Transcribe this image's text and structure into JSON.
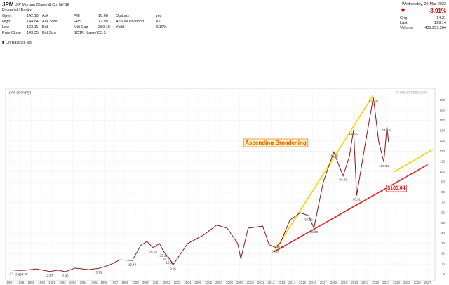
{
  "header": {
    "ticker": "JPM",
    "name": "J P Morgan Chase & Co",
    "exchange": "NYSE",
    "sector": "Financial / Banks",
    "stats": [
      [
        [
          "Open",
          "142.10"
        ],
        [
          "Ask"
        ],
        [
          "P/E",
          "10.68"
        ],
        [
          "Options",
          "yes"
        ]
      ],
      [
        [
          "High",
          "144.84"
        ],
        [
          "Ask Size"
        ],
        [
          "EPS",
          "12.09"
        ],
        [
          "Annual Dividend",
          "4.0"
        ]
      ],
      [
        [
          "Low",
          "123.11"
        ],
        [
          "Bid"
        ],
        [
          "Mkt Cap",
          "380.18"
        ],
        [
          "Yield",
          "3.10%"
        ]
      ],
      [
        [
          "Prev Close",
          "143.35"
        ],
        [
          "Bid Size"
        ],
        [
          "SCTR (Large)",
          "55.3"
        ]
      ]
    ],
    "indicator": "On Balance Vol"
  },
  "quote": {
    "date": "Wednesday, 29-Mar-2023",
    "change_pct": "-8.91%",
    "chg_label": "Chg",
    "chg": "-14.21",
    "last_label": "Last",
    "last": "129.14",
    "volume_label": "Volume",
    "volume": "433,259,264"
  },
  "watermark": "© StockCharts.com",
  "chart_data": {
    "type": "line",
    "title": "JPM (Monthly)",
    "x": [
      1987.0,
      1987.8,
      1988.4,
      1989.5,
      1990.8,
      1991.6,
      1992.3,
      1993.2,
      1994.5,
      1995.5,
      1996.5,
      1997.5,
      1998.7,
      1999.5,
      2000.1,
      2000.7,
      2001.3,
      2001.7,
      2002.0,
      2002.3,
      2002.6,
      2004.0,
      2005.5,
      2006.8,
      2007.8,
      2008.8,
      2009.1,
      2009.8,
      2011.2,
      2011.8,
      2012.4,
      2012.9,
      2013.8,
      2014.8,
      2015.6,
      2016.1,
      2017.0,
      2018.0,
      2018.9,
      2019.5,
      2019.9,
      2020.2,
      2020.9,
      2021.8,
      2022.3,
      2022.8,
      2023.1,
      2023.25
    ],
    "series": [
      {
        "name": "JPM",
        "color": "#8b1a1a",
        "values": [
          4.34,
          3.69,
          3.93,
          5.2,
          2.67,
          4.0,
          2.46,
          6,
          4.5,
          5.73,
          9,
          14,
          13.43,
          28,
          32,
          25.75,
          30,
          22.25,
          18.35,
          15.26,
          9.05,
          30,
          38,
          48,
          45,
          30,
          15,
          45,
          47,
          29,
          26.26,
          30.83,
          53,
          60,
          57.12,
          45.0,
          90,
          119.32,
          96.03,
          115,
          141.1,
          76.91,
          120,
          172.96,
          130,
          109.54,
          144.34,
          129.14
        ],
        "value_labels": [
          "4.34",
          "3.69",
          "3.93",
          null,
          "2.67",
          null,
          "2.46",
          null,
          null,
          "5.73",
          null,
          null,
          "13.43",
          null,
          null,
          "25.75",
          null,
          "22.25",
          "18.35",
          "15.26",
          "9.05",
          null,
          null,
          null,
          null,
          null,
          null,
          null,
          null,
          null,
          "26.26",
          "30.83",
          null,
          null,
          "57.12",
          "45.00",
          null,
          "119.32",
          "96.03",
          null,
          "141.10",
          "76.91",
          null,
          "172.96",
          null,
          "109.54",
          "144.34",
          null
        ]
      }
    ],
    "trendlines": [
      {
        "color": "#f5d000",
        "points": [
          [
            2012.3,
            22
          ],
          [
            2021.8,
            175
          ]
        ]
      },
      {
        "color": "#f5d000",
        "points": [
          [
            2023.8,
            100
          ],
          [
            2027.5,
            122
          ]
        ]
      },
      {
        "color": "#e0201a",
        "points": [
          [
            2012.3,
            22
          ],
          [
            2027.0,
            107
          ]
        ]
      }
    ],
    "annotations": [
      {
        "text": "Ascending Broadening",
        "color": "#e05a00",
        "x": 2009.5,
        "y": 128
      },
      {
        "text": "$100.64",
        "color": "#d01010",
        "x": 2024.0,
        "y": 84
      }
    ],
    "xlim": [
      1986.7,
      2027.7
    ],
    "ylim": [
      -5,
      180
    ],
    "xticks": [
      1987,
      1988,
      1989,
      1990,
      1991,
      1992,
      1993,
      1994,
      1995,
      1996,
      1997,
      1998,
      1999,
      2000,
      2001,
      2002,
      2003,
      2004,
      2005,
      2006,
      2007,
      2008,
      2009,
      2010,
      2011,
      2012,
      2013,
      2014,
      2015,
      2016,
      2017,
      2018,
      2019,
      2020,
      2021,
      2022,
      2023,
      2024,
      2025,
      2026,
      2027
    ],
    "yticks": [
      0,
      10,
      20,
      30,
      40,
      50,
      60,
      70,
      80,
      90,
      100,
      110,
      120,
      130,
      140,
      150,
      160,
      170
    ],
    "grid": true
  }
}
